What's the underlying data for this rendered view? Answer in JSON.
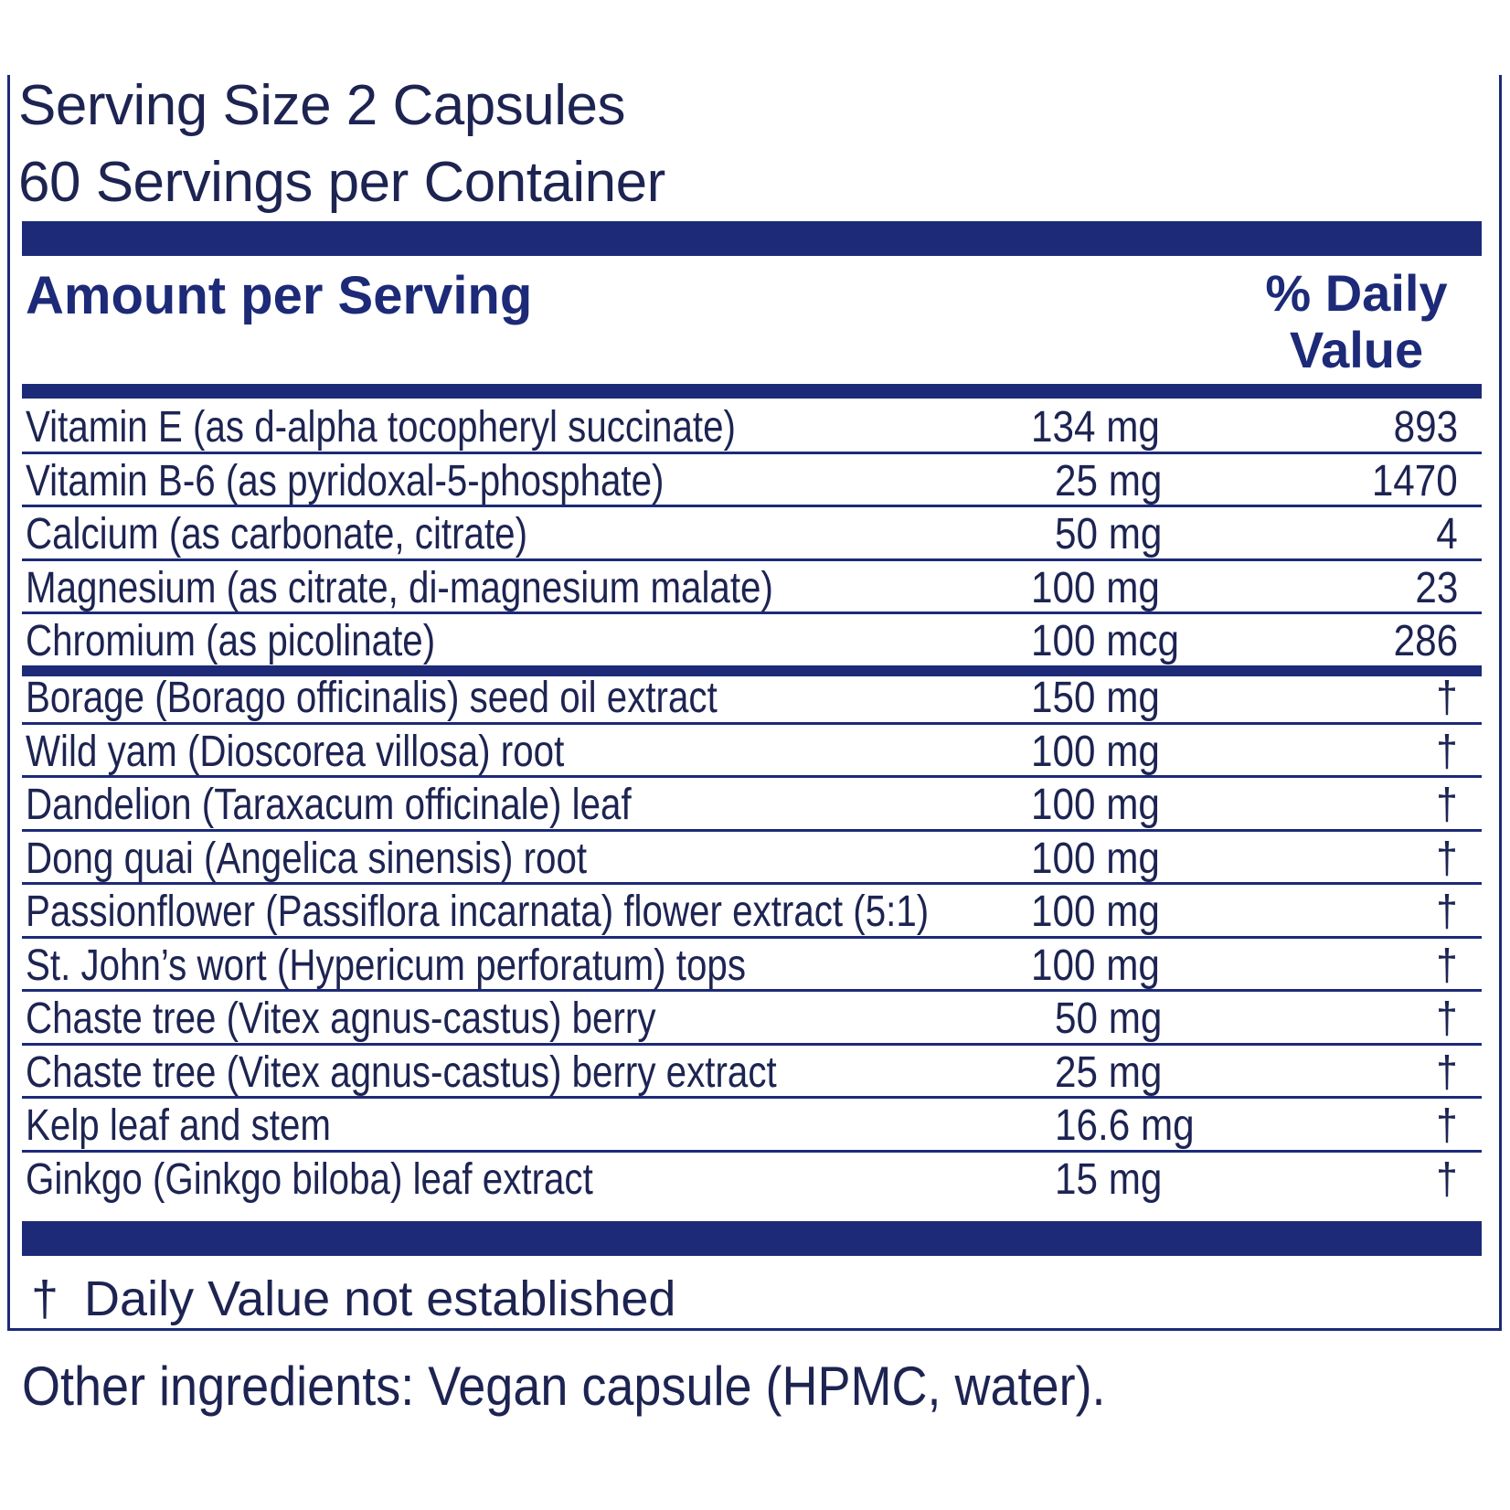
{
  "serving_size": "Serving Size 2 Capsules",
  "servings_per_container": "60 Servings per Container",
  "header": {
    "amount_per_serving": "Amount per Serving",
    "daily_value_line1": "% Daily",
    "daily_value_line2": "Value"
  },
  "vitamins": [
    {
      "name": "Vitamin E (as d-alpha tocopheryl succinate)",
      "amount": "134 mg",
      "dv": "893"
    },
    {
      "name": "Vitamin B-6 (as pyridoxal-5-phosphate)",
      "amount": "25 mg",
      "dv": "1470"
    },
    {
      "name": "Calcium (as carbonate, citrate)",
      "amount": "50 mg",
      "dv": "4"
    },
    {
      "name": "Magnesium (as citrate, di-magnesium malate)",
      "amount": "100 mg",
      "dv": "23"
    },
    {
      "name": "Chromium (as picolinate)",
      "amount": "100 mcg",
      "dv": "286"
    }
  ],
  "botanicals": [
    {
      "name": "Borage (Borago officinalis) seed oil extract",
      "amount": "150 mg",
      "dv": "†"
    },
    {
      "name": "Wild yam (Dioscorea villosa) root",
      "amount": "100 mg",
      "dv": "†"
    },
    {
      "name": "Dandelion (Taraxacum officinale) leaf",
      "amount": "100 mg",
      "dv": "†"
    },
    {
      "name": "Dong quai (Angelica sinensis) root",
      "amount": "100 mg",
      "dv": "†"
    },
    {
      "name": "Passionflower (Passiflora incarnata) flower extract (5:1)",
      "amount": "100 mg",
      "dv": "†"
    },
    {
      "name": "St. John’s wort (Hypericum perforatum) tops",
      "amount": "100 mg",
      "dv": "†"
    },
    {
      "name": "Chaste tree (Vitex agnus-castus) berry",
      "amount": "50 mg",
      "dv": "†"
    },
    {
      "name": "Chaste tree (Vitex agnus-castus) berry extract",
      "amount": "25 mg",
      "dv": "†"
    },
    {
      "name": "Kelp leaf and stem",
      "amount": "16.6 mg",
      "dv": "†"
    },
    {
      "name": "Ginkgo (Ginkgo biloba) leaf extract",
      "amount": "15 mg",
      "dv": "†"
    }
  ],
  "footnote": {
    "symbol": "†",
    "text": "Daily Value not established"
  },
  "other_ingredients": "Other ingredients: Vegan capsule (HPMC, water).",
  "colors": {
    "navy": "#1c2a78",
    "text": "#1d2452"
  }
}
